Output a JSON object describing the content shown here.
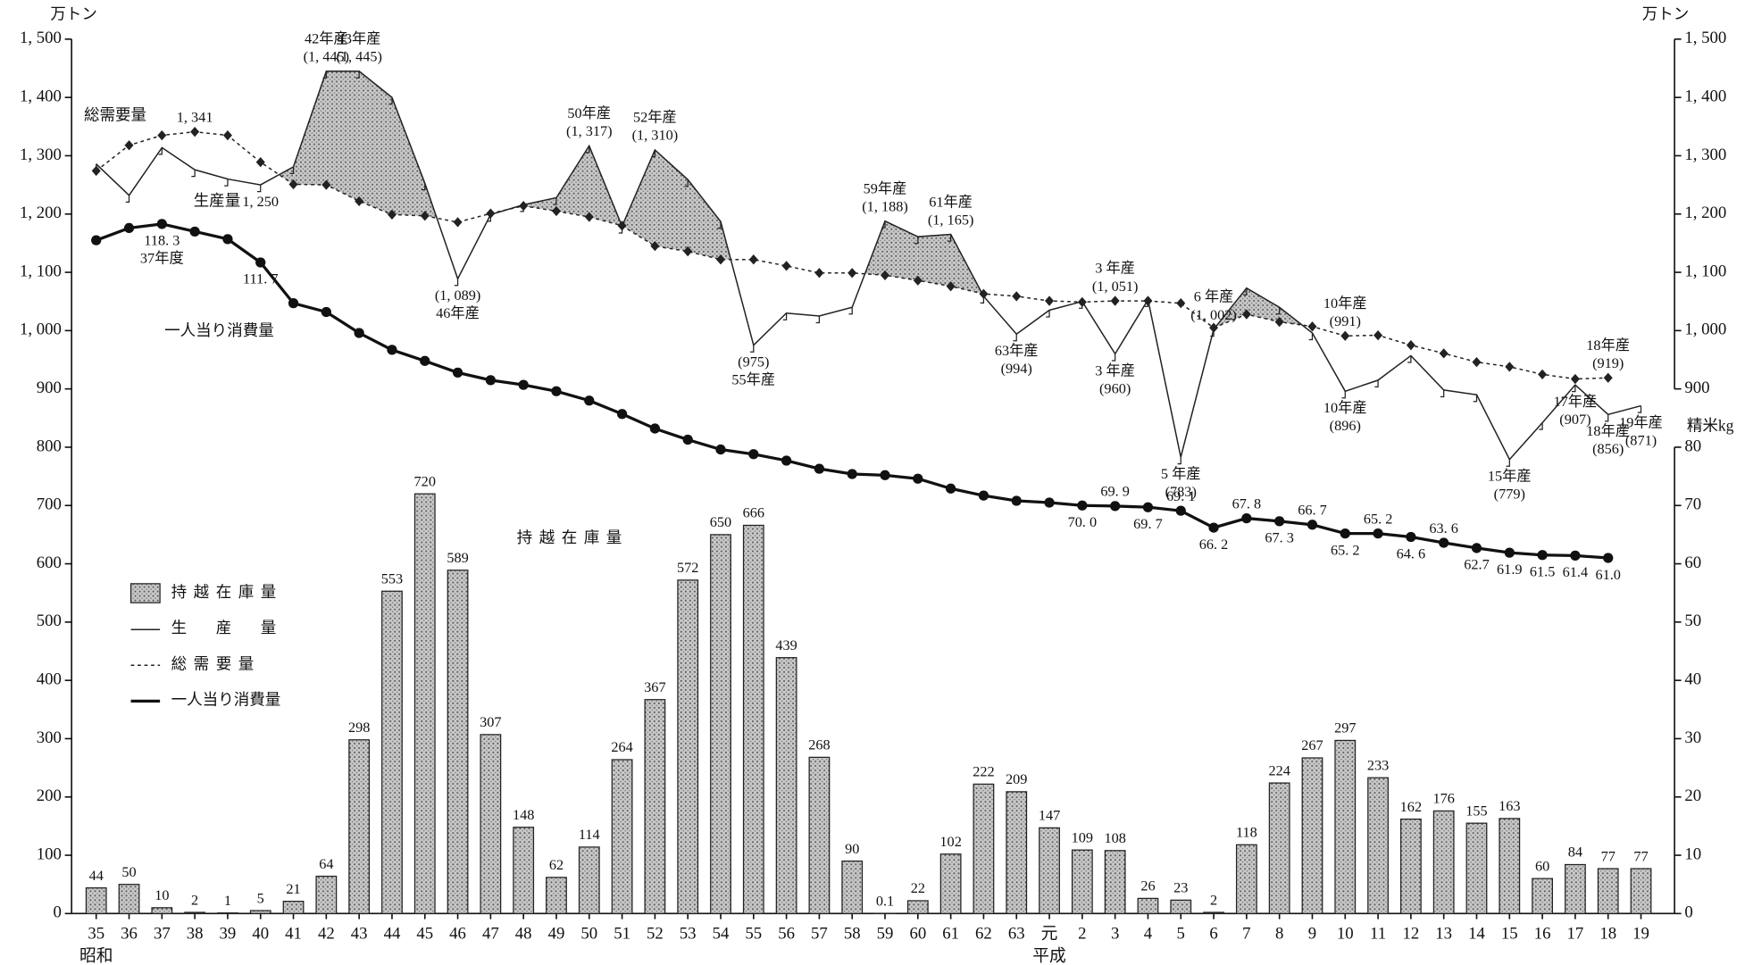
{
  "chart_data": {
    "type": "bar_line",
    "y_unit_label": "万トン",
    "y_unit_label_right": "万トン",
    "y2_unit_label": "精米kg",
    "categories": [
      "35",
      "36",
      "37",
      "38",
      "39",
      "40",
      "41",
      "42",
      "43",
      "44",
      "45",
      "46",
      "47",
      "48",
      "49",
      "50",
      "51",
      "52",
      "53",
      "54",
      "55",
      "56",
      "57",
      "58",
      "59",
      "60",
      "61",
      "62",
      "63",
      "元",
      "2",
      "3",
      "4",
      "5",
      "6",
      "7",
      "8",
      "9",
      "10",
      "11",
      "12",
      "13",
      "14",
      "15",
      "16",
      "17",
      "18",
      "19"
    ],
    "eras": [
      "昭和",
      null,
      null,
      null,
      null,
      null,
      null,
      null,
      null,
      null,
      null,
      null,
      null,
      null,
      null,
      null,
      null,
      null,
      null,
      null,
      null,
      null,
      null,
      null,
      null,
      null,
      null,
      null,
      null,
      "平成",
      null,
      null,
      null,
      null,
      null,
      null,
      null,
      null,
      null,
      null,
      null,
      null,
      null,
      null,
      null,
      null,
      null,
      null
    ],
    "ylim": [
      0,
      1500
    ],
    "yticks": [
      0,
      100,
      200,
      300,
      400,
      500,
      600,
      700,
      800,
      900,
      {
        "value": 1000,
        "label": "1, 000"
      },
      {
        "value": 1100,
        "label": "1, 100"
      },
      {
        "value": 1200,
        "label": "1, 200"
      },
      {
        "value": 1300,
        "label": "1, 300"
      },
      {
        "value": 1400,
        "label": "1, 400"
      },
      {
        "value": 1500,
        "label": "1, 500"
      }
    ],
    "yticks_right": [
      900,
      {
        "value": 1000,
        "label": "1, 000"
      },
      {
        "value": 1100,
        "label": "1, 100"
      },
      {
        "value": 1200,
        "label": "1, 200"
      },
      {
        "value": 1300,
        "label": "1, 300"
      },
      {
        "value": 1400,
        "label": "1, 400"
      },
      {
        "value": 1500,
        "label": "1, 500"
      }
    ],
    "y2lim": [
      0,
      150
    ],
    "y2ticks": [
      0,
      10,
      20,
      30,
      40,
      50,
      60,
      70,
      80
    ],
    "grid": false,
    "series": [
      {
        "name": "持越在庫量",
        "type": "bar",
        "color": "#b4b4b4",
        "values": [
          44,
          50,
          10,
          2,
          1,
          5,
          21,
          64,
          298,
          553,
          720,
          589,
          307,
          148,
          62,
          114,
          264,
          367,
          572,
          650,
          666,
          439,
          268,
          90,
          0.1,
          22,
          102,
          222,
          209,
          147,
          109,
          108,
          26,
          23,
          2,
          118,
          224,
          267,
          297,
          233,
          162,
          176,
          155,
          163,
          60,
          84,
          77,
          77
        ]
      },
      {
        "name": "生産量",
        "type": "line",
        "color": "#222",
        "width": 1.2,
        "dash": false,
        "marker": "tick",
        "values": [
          1286,
          1232,
          1314,
          1276,
          1260,
          1250,
          1281,
          1445,
          1445,
          1400,
          1253,
          1089,
          1199,
          1216,
          1228,
          1317,
          1179,
          1310,
          1259,
          1187,
          975,
          1030,
          1025,
          1040,
          1188,
          1161,
          1165,
          1059,
          994,
          1035,
          1050,
          960,
          1053,
          783,
          1002,
          1073,
          1040,
          996,
          896,
          915,
          957,
          898,
          890,
          779,
          842,
          907,
          856,
          871
        ],
        "value_labels": [
          null,
          null,
          null,
          null,
          null,
          [
            "1, 250"
          ],
          null,
          [
            "42年産",
            "(1, 445)"
          ],
          [
            "43年産",
            "(1, 445)"
          ],
          null,
          null,
          [
            "(1, 089)",
            "46年産"
          ],
          null,
          null,
          null,
          [
            "50年産",
            "(1, 317)"
          ],
          null,
          [
            "52年産",
            "(1, 310)"
          ],
          null,
          null,
          [
            "(975)",
            "55年産"
          ],
          null,
          null,
          null,
          [
            "59年産",
            "(1, 188)"
          ],
          null,
          [
            "61年産",
            "(1, 165)"
          ],
          null,
          [
            "63年産",
            "(994)"
          ],
          null,
          null,
          [
            "3 年産",
            "(960)"
          ],
          null,
          [
            "5 年産",
            "(783)"
          ],
          [
            "6 年産",
            "(1, 002)"
          ],
          null,
          null,
          null,
          [
            "10年産",
            "(896)"
          ],
          null,
          null,
          null,
          null,
          [
            "15年産",
            "(779)"
          ],
          null,
          [
            "17年産",
            "(907)"
          ],
          [
            "18年産",
            "(856)"
          ],
          [
            "19年産",
            "(871)"
          ]
        ]
      },
      {
        "name": "総需要量",
        "type": "line",
        "color": "#222",
        "width": 1.2,
        "dash": true,
        "marker": "diamond",
        "values": [
          1274,
          1318,
          1335,
          1341,
          1335,
          1289,
          1251,
          1250,
          1222,
          1199,
          1197,
          1186,
          1201,
          1214,
          1205,
          1195,
          1180,
          1145,
          1136,
          1122,
          1122,
          1111,
          1099,
          1099,
          1095,
          1086,
          1076,
          1063,
          1059,
          1051,
          1049,
          1051,
          1051,
          1047,
          1005,
          1028,
          1015,
          1007,
          991,
          992,
          975,
          961,
          946,
          938,
          925,
          917,
          919,
          null
        ],
        "value_labels": [
          null,
          null,
          null,
          [
            "1, 341"
          ],
          null,
          null,
          null,
          null,
          null,
          null,
          null,
          null,
          null,
          null,
          null,
          null,
          null,
          null,
          null,
          null,
          null,
          null,
          null,
          null,
          null,
          null,
          null,
          null,
          null,
          null,
          null,
          [
            "3 年産",
            "(1, 051)"
          ],
          null,
          null,
          null,
          null,
          null,
          null,
          [
            "10年産",
            "(991)"
          ],
          null,
          null,
          null,
          null,
          null,
          null,
          null,
          [
            "18年産",
            "(919)"
          ],
          null
        ]
      },
      {
        "name": "一人当り消費量",
        "type": "line",
        "axis": "y2",
        "color": "#111",
        "width": 2.6,
        "dash": false,
        "marker": "circle",
        "values": [
          115.5,
          117.6,
          118.3,
          117.0,
          115.7,
          111.7,
          104.7,
          103.2,
          99.6,
          96.7,
          94.8,
          92.8,
          91.5,
          90.7,
          89.6,
          88.0,
          85.7,
          83.2,
          81.3,
          79.6,
          78.8,
          77.7,
          76.3,
          75.4,
          75.2,
          74.6,
          72.9,
          71.7,
          70.8,
          70.5,
          70.0,
          69.9,
          69.7,
          69.1,
          66.2,
          67.8,
          67.3,
          66.7,
          65.2,
          65.2,
          64.6,
          63.6,
          62.7,
          61.9,
          61.5,
          61.4,
          61.0,
          null
        ],
        "value_labels": [
          null,
          null,
          [
            "118. 3",
            "37年度"
          ],
          null,
          null,
          [
            "111. 7"
          ],
          null,
          null,
          null,
          null,
          null,
          null,
          null,
          null,
          null,
          null,
          null,
          null,
          null,
          null,
          null,
          null,
          null,
          null,
          null,
          null,
          null,
          null,
          null,
          null,
          [
            "70. 0"
          ],
          [
            "69. 9"
          ],
          [
            "69. 7"
          ],
          [
            "69. 1"
          ],
          [
            "66. 2"
          ],
          [
            "67. 8"
          ],
          [
            "67. 3"
          ],
          [
            "66. 7"
          ],
          [
            "65. 2"
          ],
          [
            "65. 2"
          ],
          [
            "64. 6"
          ],
          [
            "63. 6"
          ],
          [
            "62.7"
          ],
          [
            "61.9"
          ],
          [
            "61.5"
          ],
          [
            "61.4"
          ],
          [
            "61.0"
          ],
          null
        ]
      }
    ]
  }
}
